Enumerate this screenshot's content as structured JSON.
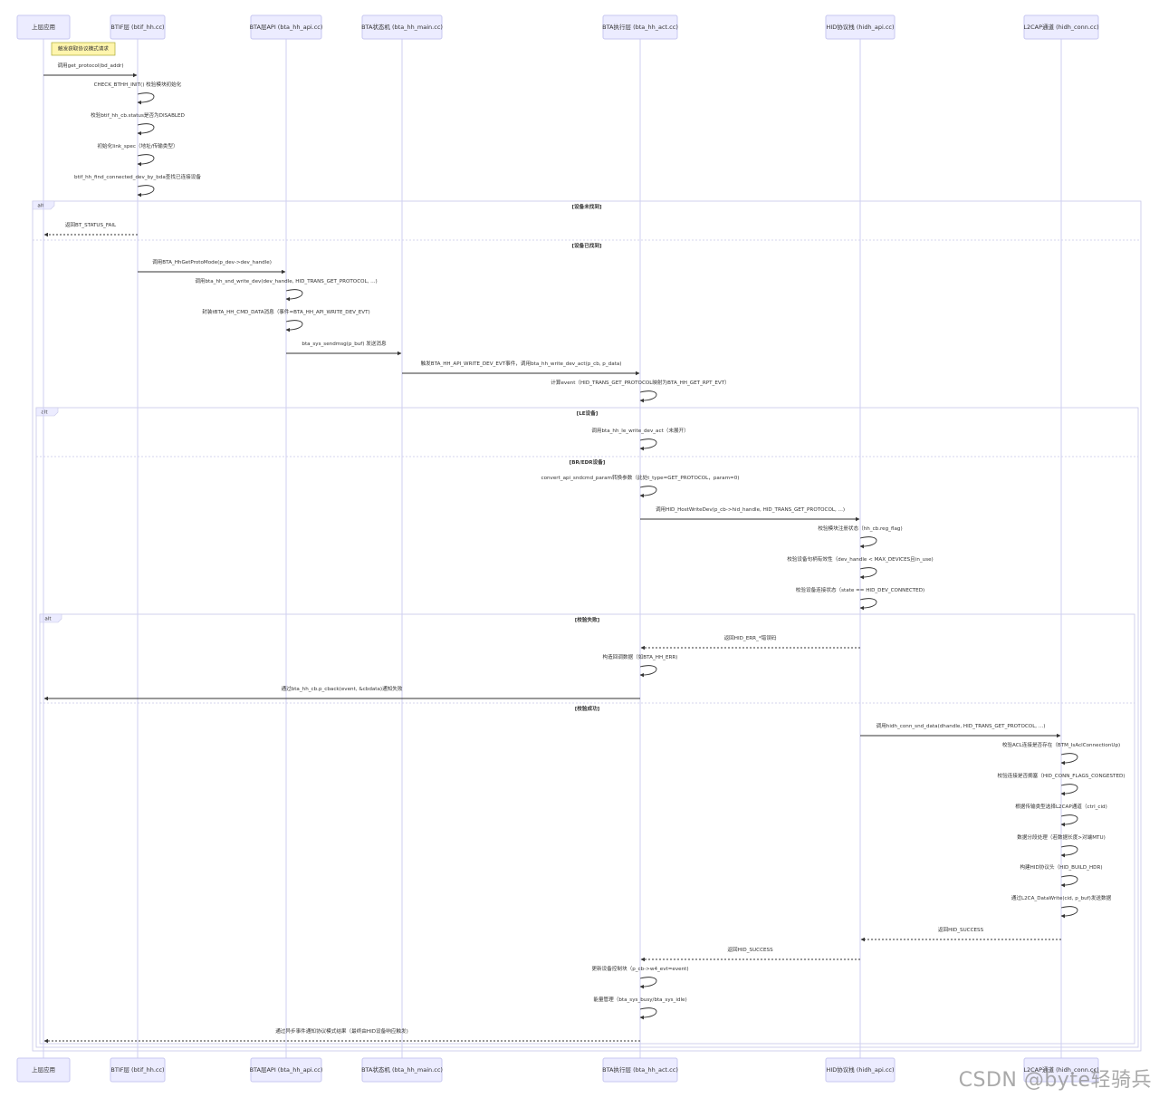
{
  "diagram": {
    "participants": [
      {
        "id": "app",
        "label": "上层应用"
      },
      {
        "id": "btif",
        "label": "BTIF层 (btif_hh.cc)"
      },
      {
        "id": "api",
        "label": "BTA层API (bta_hh_api.cc)"
      },
      {
        "id": "sm",
        "label": "BTA状态机 (bta_hh_main.cc)"
      },
      {
        "id": "act",
        "label": "BTA执行层 (bta_hh_act.cc)"
      },
      {
        "id": "hidh",
        "label": "HID协议栈 (hidh_api.cc)"
      },
      {
        "id": "l2cap",
        "label": "L2CAP通道 (hidh_conn.cc)"
      }
    ],
    "note": "触发获取协议模式请求",
    "messages": [
      {
        "text": "调用get_protocol(bd_addr)"
      },
      {
        "text": "CHECK_BTHH_INIT() 校验模块初始化"
      },
      {
        "text": "校验btif_hh_cb.status是否为DISABLED"
      },
      {
        "text": "初始化link_spec（地址/传输类型）"
      },
      {
        "text": "btif_hh_find_connected_dev_by_bda查找已连接设备"
      },
      {
        "text": "返回BT_STATUS_FAIL"
      },
      {
        "text": "调用BTA_HhGetProtoMode(p_dev->dev_handle)"
      },
      {
        "text": "调用bta_hh_snd_write_dev(dev_handle, HID_TRANS_GET_PROTOCOL, ...)"
      },
      {
        "text": "封装tBTA_HH_CMD_DATA消息（事件=BTA_HH_API_WRITE_DEV_EVT)"
      },
      {
        "text": "bta_sys_sendmsg(p_buf) 发送消息"
      },
      {
        "text": "触发BTA_HH_API_WRITE_DEV_EVT事件，调用bta_hh_write_dev_act(p_cb, p_data)"
      },
      {
        "text": "计算event（HID_TRANS_GET_PROTOCOL映射为BTA_HH_GET_RPT_EVT）"
      },
      {
        "text": "调用bta_hh_le_write_dev_act（未展开）"
      },
      {
        "text": "convert_api_sndcmd_param转换参数（此处t_type=GET_PROTOCOL，param=0)"
      },
      {
        "text": "调用HID_HostWriteDev(p_cb->hid_handle, HID_TRANS_GET_PROTOCOL, ...)"
      },
      {
        "text": "校验模块注册状态（hh_cb.reg_flag)"
      },
      {
        "text": "校验设备句柄有效性（dev_handle < MAX_DEVICES且in_use)"
      },
      {
        "text": "校验设备连接状态（state == HID_DEV_CONNECTED)"
      },
      {
        "text": "返回HID_ERR_*错误码"
      },
      {
        "text": "构造回调数据（如BTA_HH_ERR)"
      },
      {
        "text": "通过bta_hh_cb.p_cback(event, &cbdata)通知失败"
      },
      {
        "text": "调用hidh_conn_snd_data(dhandle, HID_TRANS_GET_PROTOCOL, ...)"
      },
      {
        "text": "校验ACL连接是否存在（BTM_IsAclConnectionUp)"
      },
      {
        "text": "校验连接是否拥塞（HID_CONN_FLAGS_CONGESTED)"
      },
      {
        "text": "根据传输类型选择L2CAP通道（ctrl_cid)"
      },
      {
        "text": "数据分段处理（若数据长度>对端MTU)"
      },
      {
        "text": "构建HID协议头（HID_BUILD_HDR)"
      },
      {
        "text": "通过L2CA_DataWrite(cid, p_buf)发送数据"
      },
      {
        "text": "返回HID_SUCCESS"
      },
      {
        "text": "返回HID_SUCCESS"
      },
      {
        "text": "更新设备控制块（p_cb->w4_evt=event)"
      },
      {
        "text": "能量管理（bta_sys_busy/bta_sys_idle)"
      },
      {
        "text": "通过异步事件通知协议模式结果（最终由HID设备响应触发)"
      }
    ],
    "frames": [
      {
        "tag": "alt",
        "conditions": [
          "[设备未找到]",
          "[设备已找到]"
        ]
      },
      {
        "tag": "alt",
        "conditions": [
          "[LE设备]",
          "[BR/EDR设备]"
        ]
      },
      {
        "tag": "alt",
        "conditions": [
          "[校验失败]",
          "[校验成功]"
        ]
      }
    ]
  },
  "watermark": "CSDN @byte轻骑兵"
}
